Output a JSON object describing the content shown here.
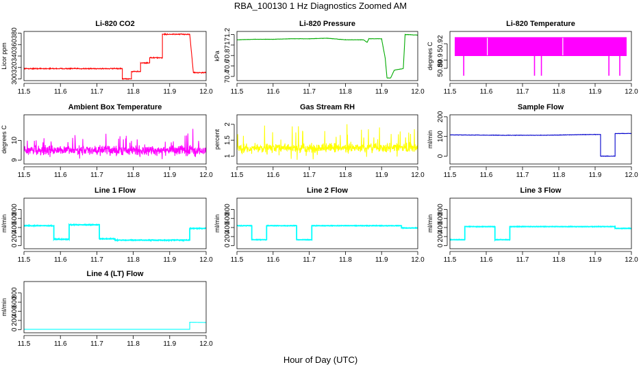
{
  "figure": {
    "title": "RBA_100130  1 Hz Diagnostics Zoomed AM",
    "xlabel": "Hour of Day (UTC)"
  },
  "chart_data": [
    {
      "type": "line",
      "title": "Li-820 CO2",
      "ylabel": "Licor ppm",
      "color": "#ff0000",
      "xlim": [
        11.5,
        12.0
      ],
      "ylim": [
        297,
        383
      ],
      "yticks": [
        300,
        320,
        340,
        360,
        380
      ],
      "noise": 1.2,
      "series": [
        {
          "name": "Li-820 CO2",
          "x": [
            11.5,
            11.77,
            11.77,
            11.795,
            11.795,
            11.82,
            11.82,
            11.845,
            11.845,
            11.88,
            11.88,
            11.955,
            11.955,
            11.965,
            11.965,
            12.0
          ],
          "y": [
            318,
            318,
            300,
            300,
            313,
            313,
            328,
            328,
            337,
            337,
            378,
            378,
            378,
            311,
            311,
            311
          ]
        }
      ]
    },
    {
      "type": "line",
      "title": "Li-820 Pressure",
      "ylabel": "kPa",
      "color": "#00aa00",
      "xlim": [
        11.5,
        12.0
      ],
      "ylim": [
        70.32,
        71.26
      ],
      "yticks": [
        70.4,
        70.6,
        70.8,
        71.0,
        71.2
      ],
      "noise": 0.004,
      "series": [
        {
          "name": "Li-820 Pressure",
          "x": [
            11.5,
            11.55,
            11.6,
            11.65,
            11.7,
            11.75,
            11.8,
            11.85,
            11.86,
            11.865,
            11.9,
            11.91,
            11.915,
            11.925,
            11.935,
            11.96,
            11.965,
            11.97,
            12.0
          ],
          "y": [
            71.1,
            71.11,
            71.11,
            71.12,
            71.12,
            71.13,
            71.1,
            71.1,
            71.05,
            71.12,
            71.12,
            70.75,
            70.37,
            70.37,
            70.52,
            70.55,
            71.2,
            71.2,
            71.19
          ]
        }
      ]
    },
    {
      "type": "line",
      "title": "Li-820 Temperature",
      "ylabel": "degrees C",
      "color": "#ff00ff",
      "xlim": [
        11.5,
        12.0
      ],
      "ylim": [
        50.875,
        50.935
      ],
      "yticks": [
        50.89,
        50.9,
        50.92
      ],
      "band": [
        50.905,
        50.928
      ],
      "spike_y": 50.881,
      "spike_x": [
        11.538,
        11.733,
        11.752,
        11.938,
        11.968
      ],
      "gap_x": [
        11.603,
        11.811
      ],
      "series": [
        {
          "name": "Li-820 Temperature",
          "x": [
            11.5,
            12.0
          ],
          "y": [
            50.918,
            50.918
          ]
        }
      ]
    },
    {
      "type": "line",
      "title": "Ambient Box Temperature",
      "ylabel": "degrees C",
      "color": "#ff00ff",
      "xlim": [
        11.5,
        12.0
      ],
      "ylim": [
        8.8,
        11.3
      ],
      "yticks": [
        9.0,
        10.0
      ],
      "noise": 0.35,
      "spikes": 0.6,
      "series": [
        {
          "name": "Ambient Box Temperature",
          "x": [
            11.5,
            12.0
          ],
          "y": [
            9.5,
            9.5
          ]
        }
      ]
    },
    {
      "type": "line",
      "title": "Gas Stream RH",
      "ylabel": "percent",
      "color": "#ffff00",
      "xlim": [
        11.5,
        12.0
      ],
      "ylim": [
        0.75,
        2.3
      ],
      "yticks": [
        1.0,
        1.5,
        2.0
      ],
      "noise": 0.2,
      "spikes": 0.5,
      "series": [
        {
          "name": "Gas Stream RH",
          "x": [
            11.5,
            12.0
          ],
          "y": [
            1.25,
            1.25
          ]
        }
      ]
    },
    {
      "type": "line",
      "title": "Sample Flow",
      "ylabel": "ml/min",
      "color": "#0000cc",
      "xlim": [
        11.5,
        12.0
      ],
      "ylim": [
        -40,
        210
      ],
      "yticks": [
        0,
        100,
        200
      ],
      "noise": 1.5,
      "series": [
        {
          "name": "Sample Flow",
          "x": [
            11.5,
            11.65,
            11.75,
            11.9,
            11.915,
            11.915,
            11.955,
            11.955,
            12.0
          ],
          "y": [
            108,
            106,
            106,
            110,
            110,
            0,
            0,
            115,
            115
          ]
        }
      ]
    },
    {
      "type": "line",
      "title": "Line 1 Flow",
      "ylabel": "ml/min",
      "color": "#00ffff",
      "xlim": [
        11.5,
        12.0
      ],
      "ylim": [
        -70,
        1050
      ],
      "yticks": [
        0,
        200,
        400,
        600,
        800
      ],
      "noise": 12,
      "series": [
        {
          "name": "Line 1 Flow",
          "x": [
            11.5,
            11.582,
            11.582,
            11.624,
            11.624,
            11.707,
            11.707,
            11.75,
            11.75,
            11.955,
            11.955,
            12.0
          ],
          "y": [
            440,
            440,
            140,
            140,
            460,
            460,
            150,
            150,
            120,
            120,
            380,
            380
          ]
        }
      ]
    },
    {
      "type": "line",
      "title": "Line 2 Flow",
      "ylabel": "ml/min",
      "color": "#00ffff",
      "xlim": [
        11.5,
        12.0
      ],
      "ylim": [
        -70,
        1050
      ],
      "yticks": [
        0,
        200,
        400,
        600,
        800
      ],
      "noise": 8,
      "series": [
        {
          "name": "Line 2 Flow",
          "x": [
            11.5,
            11.541,
            11.541,
            11.582,
            11.582,
            11.665,
            11.665,
            11.707,
            11.707,
            11.955,
            11.955,
            12.0
          ],
          "y": [
            440,
            440,
            130,
            130,
            440,
            440,
            130,
            130,
            440,
            440,
            390,
            390
          ]
        }
      ]
    },
    {
      "type": "line",
      "title": "Line 3 Flow",
      "ylabel": "ml/min",
      "color": "#00ffff",
      "xlim": [
        11.5,
        12.0
      ],
      "ylim": [
        -70,
        1050
      ],
      "yticks": [
        0,
        200,
        400,
        600,
        800
      ],
      "noise": 8,
      "series": [
        {
          "name": "Line 3 Flow",
          "x": [
            11.5,
            11.541,
            11.541,
            11.624,
            11.624,
            11.665,
            11.665,
            11.955,
            11.955,
            12.0
          ],
          "y": [
            130,
            130,
            420,
            420,
            130,
            130,
            420,
            420,
            380,
            380
          ]
        }
      ]
    },
    {
      "type": "line",
      "title": "Line 4 (LT) Flow",
      "ylabel": "ml/min",
      "color": "#00ffff",
      "xlim": [
        11.5,
        12.0
      ],
      "ylim": [
        -70,
        1050
      ],
      "yticks": [
        0,
        200,
        400,
        600,
        800
      ],
      "noise": 0,
      "series": [
        {
          "name": "Line 4 (LT) Flow",
          "x": [
            11.5,
            11.955,
            11.955,
            12.0
          ],
          "y": [
            5,
            5,
            160,
            155
          ]
        }
      ]
    }
  ],
  "x_tick_labels": [
    "11.5",
    "11.6",
    "11.7",
    "11.8",
    "11.9",
    "12.0"
  ]
}
